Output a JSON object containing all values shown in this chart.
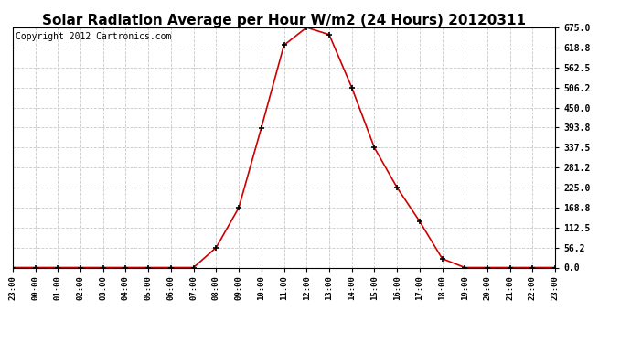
{
  "title": "Solar Radiation Average per Hour W/m2 (24 Hours) 20120311",
  "copyright": "Copyright 2012 Cartronics.com",
  "x_labels": [
    "23:00",
    "00:00",
    "01:00",
    "02:00",
    "03:00",
    "04:00",
    "05:00",
    "06:00",
    "07:00",
    "08:00",
    "09:00",
    "10:00",
    "11:00",
    "12:00",
    "13:00",
    "14:00",
    "15:00",
    "16:00",
    "17:00",
    "18:00",
    "19:00",
    "20:00",
    "21:00",
    "22:00",
    "23:00"
  ],
  "x_values": [
    0,
    1,
    2,
    3,
    4,
    5,
    6,
    7,
    8,
    9,
    10,
    11,
    12,
    13,
    14,
    15,
    16,
    17,
    18,
    19,
    20,
    21,
    22,
    23,
    24
  ],
  "y_values": [
    0,
    0,
    0,
    0,
    0,
    0,
    0,
    0,
    0,
    56,
    168,
    393,
    625,
    675,
    655,
    506,
    337,
    225,
    130,
    25,
    0,
    0,
    0,
    0,
    0
  ],
  "ymin": 0.0,
  "ymax": 675.0,
  "yticks": [
    0.0,
    56.2,
    112.5,
    168.8,
    225.0,
    281.2,
    337.5,
    393.8,
    450.0,
    506.2,
    562.5,
    618.8,
    675.0
  ],
  "line_color": "#cc0000",
  "marker": "+",
  "marker_color": "#000000",
  "marker_size": 5,
  "marker_linewidth": 1.2,
  "linewidth": 1.2,
  "background_color": "#ffffff",
  "grid_color": "#c8c8c8",
  "title_fontsize": 11,
  "copyright_fontsize": 7
}
